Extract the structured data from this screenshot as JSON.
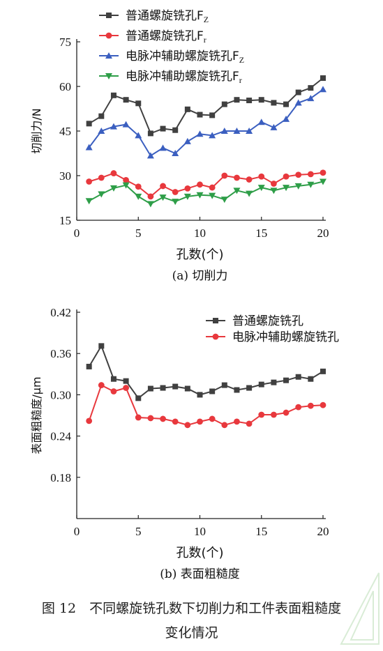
{
  "figure": {
    "caption_line1": "图 12　不同螺旋铣孔数下切削力和工件表面粗糙度",
    "caption_line2": "变化情况"
  },
  "chart_data": [
    {
      "type": "line",
      "subtitle": "(a) 切削力",
      "xlabel": "孔数(个)",
      "ylabel": "切削力/N",
      "xlim": [
        0,
        20
      ],
      "ylim": [
        15,
        75
      ],
      "xticks": [
        0,
        5,
        10,
        15,
        20
      ],
      "yticks": [
        15,
        30,
        45,
        60,
        75
      ],
      "grid": false,
      "legend_position": "top-left",
      "x": [
        1,
        2,
        3,
        4,
        5,
        6,
        7,
        8,
        9,
        10,
        11,
        12,
        13,
        14,
        15,
        16,
        17,
        18,
        19,
        20
      ],
      "series": [
        {
          "name": "普通螺旋铣孔F",
          "name_sub": "Z",
          "color": "#404040",
          "marker": "square",
          "values": [
            47.5,
            50,
            57,
            55.5,
            54.3,
            44.2,
            45.8,
            45.3,
            52.3,
            50.5,
            50.3,
            54,
            55.5,
            55.3,
            55.5,
            54.5,
            54,
            58,
            59.5,
            62.8
          ]
        },
        {
          "name": "普通螺旋铣孔F",
          "name_sub": "r",
          "color": "#e8383d",
          "marker": "circle",
          "values": [
            28,
            29.3,
            30.8,
            28.5,
            26.3,
            23,
            26.5,
            24.5,
            25.7,
            27,
            26,
            30,
            29.3,
            28.7,
            29.7,
            27.3,
            29.7,
            30.3,
            30.5,
            31
          ]
        },
        {
          "name": "电脉冲辅助螺旋铣孔F",
          "name_sub": "Z",
          "color": "#3b5fc0",
          "marker": "triangle-up",
          "values": [
            39.5,
            45,
            46.5,
            47.2,
            43.5,
            36.7,
            39.3,
            37.5,
            41.5,
            44,
            43.5,
            45,
            45,
            45,
            48,
            46.2,
            49,
            54.5,
            56,
            59
          ]
        },
        {
          "name": "电脉冲辅助螺旋铣孔F",
          "name_sub": "r",
          "color": "#2e9e48",
          "marker": "triangle-down",
          "values": [
            21.5,
            23.8,
            25.8,
            26.8,
            23,
            20.5,
            22.7,
            21.3,
            23,
            23.5,
            23.3,
            22,
            25,
            24,
            26,
            25,
            26,
            26.5,
            27,
            28
          ]
        }
      ]
    },
    {
      "type": "line",
      "subtitle": "(b) 表面粗糙度",
      "xlabel": "孔数(个)",
      "ylabel": "表面粗糙度/μm",
      "xlim": [
        0,
        20
      ],
      "ylim": [
        0.12,
        0.42
      ],
      "xticks": [
        0,
        5,
        10,
        15,
        20
      ],
      "yticks": [
        0.18,
        0.24,
        0.3,
        0.36,
        0.42
      ],
      "grid": false,
      "legend_position": "top-right",
      "x": [
        1,
        2,
        3,
        4,
        5,
        6,
        7,
        8,
        9,
        10,
        11,
        12,
        13,
        14,
        15,
        16,
        17,
        18,
        19,
        20
      ],
      "series": [
        {
          "name": "普通螺旋铣孔",
          "name_sub": "",
          "color": "#404040",
          "marker": "square",
          "values": [
            0.341,
            0.371,
            0.323,
            0.32,
            0.295,
            0.309,
            0.31,
            0.312,
            0.309,
            0.3,
            0.305,
            0.314,
            0.307,
            0.31,
            0.315,
            0.318,
            0.321,
            0.326,
            0.323,
            0.334
          ]
        },
        {
          "name": "电脉冲辅助螺旋铣孔",
          "name_sub": "",
          "color": "#e8383d",
          "marker": "circle",
          "values": [
            0.262,
            0.314,
            0.305,
            0.31,
            0.267,
            0.266,
            0.265,
            0.261,
            0.256,
            0.261,
            0.265,
            0.256,
            0.261,
            0.258,
            0.271,
            0.271,
            0.274,
            0.282,
            0.284,
            0.285
          ]
        }
      ]
    }
  ]
}
